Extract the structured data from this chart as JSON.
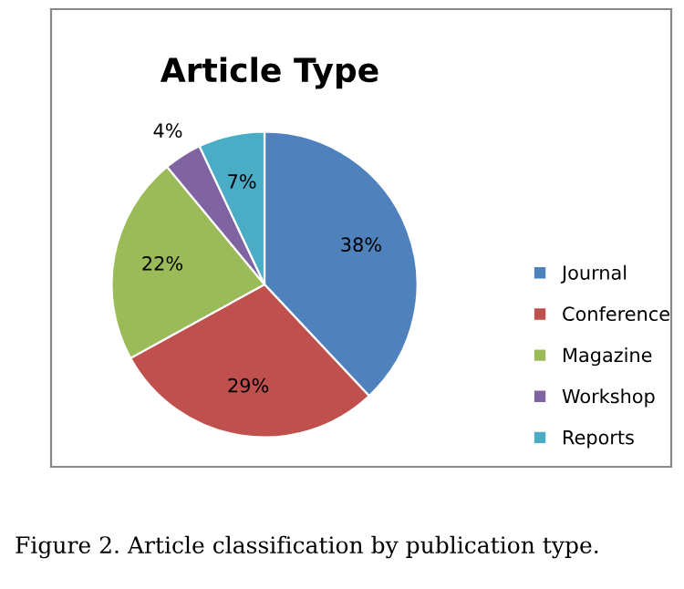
{
  "chart_data": {
    "type": "pie",
    "title": "Article Type",
    "categories": [
      "Journal",
      "Conference",
      "Magazine",
      "Workshop",
      "Reports"
    ],
    "values": [
      38,
      29,
      22,
      4,
      7
    ],
    "colors": [
      "#4f81bd",
      "#c0504d",
      "#9bbb59",
      "#8064a2",
      "#4bacc6"
    ],
    "value_labels": [
      "38%",
      "29%",
      "22%",
      "4%",
      "7%"
    ],
    "legend": "right",
    "annotations": [
      "Figure 2. Article classification by publication type."
    ]
  }
}
